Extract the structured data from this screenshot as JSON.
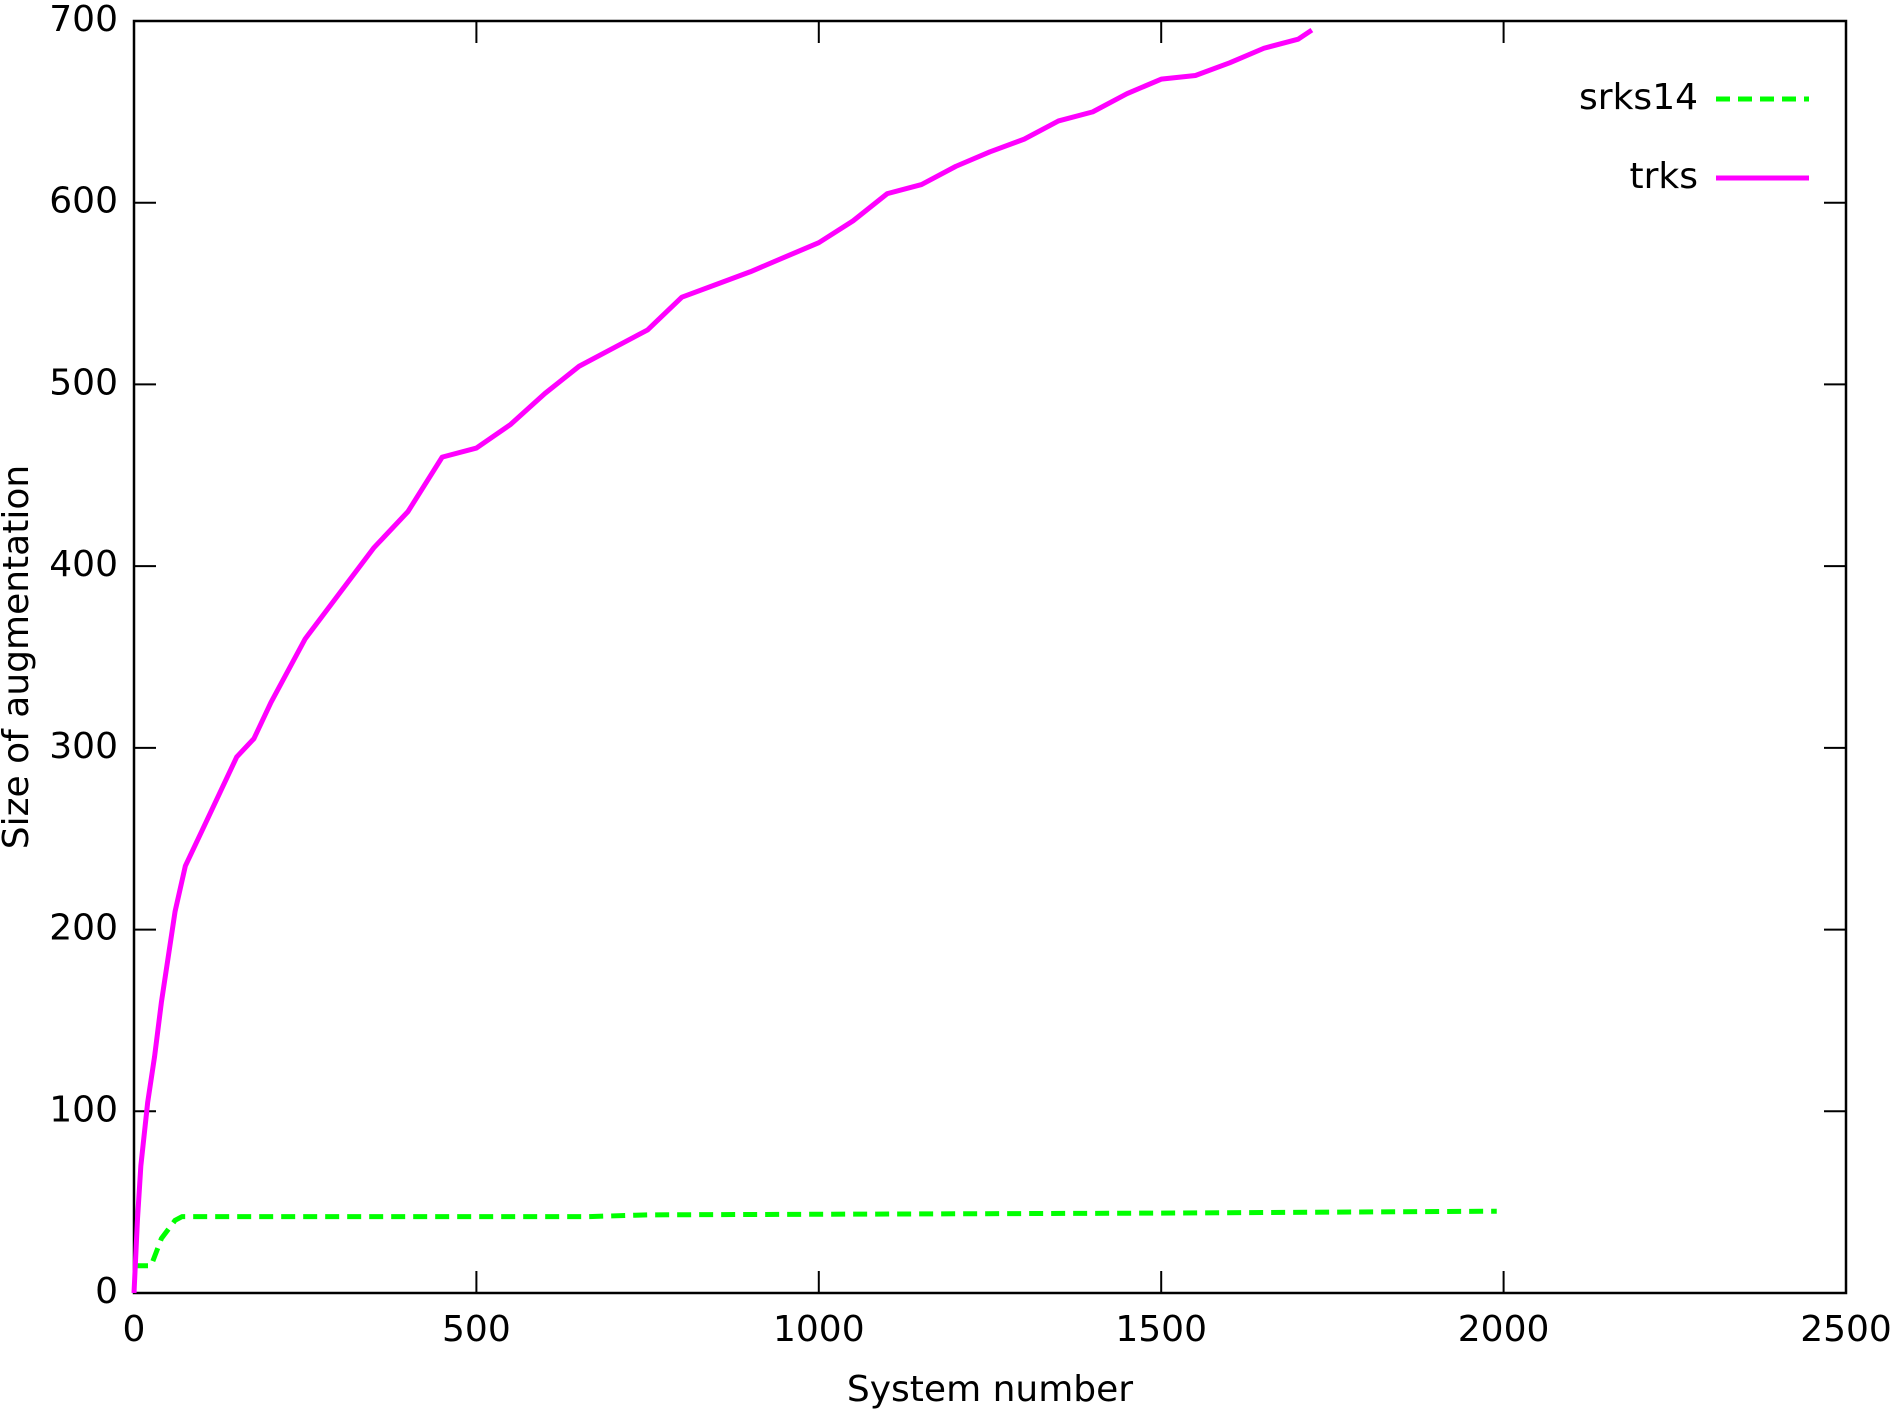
{
  "chart_data": {
    "type": "line",
    "xlabel": "System number",
    "ylabel": "Size of augmentation",
    "xlim": [
      0,
      2500
    ],
    "ylim": [
      0,
      700
    ],
    "xticks": [
      0,
      500,
      1000,
      1500,
      2000,
      2500
    ],
    "yticks": [
      0,
      100,
      200,
      300,
      400,
      500,
      600,
      700
    ],
    "legend": "top-right",
    "grid": false,
    "series": [
      {
        "name": "srks14",
        "color": "#00ff00",
        "dash": true,
        "x": [
          0,
          25,
          40,
          60,
          70,
          660,
          750,
          1520,
          1990
        ],
        "values": [
          15,
          15,
          30,
          40,
          42,
          42,
          43,
          44,
          45
        ]
      },
      {
        "name": "trks",
        "color": "#ff00ff",
        "dash": false,
        "x": [
          0,
          5,
          10,
          20,
          30,
          40,
          50,
          60,
          75,
          100,
          125,
          150,
          175,
          200,
          250,
          300,
          350,
          400,
          450,
          500,
          550,
          600,
          650,
          700,
          750,
          800,
          850,
          900,
          950,
          1000,
          1050,
          1100,
          1150,
          1200,
          1250,
          1300,
          1350,
          1400,
          1450,
          1500,
          1550,
          1600,
          1650,
          1700,
          1720
        ],
        "values": [
          0,
          40,
          70,
          105,
          130,
          160,
          185,
          210,
          235,
          255,
          275,
          295,
          305,
          325,
          360,
          385,
          410,
          430,
          460,
          465,
          478,
          495,
          510,
          520,
          530,
          548,
          555,
          562,
          570,
          578,
          590,
          605,
          610,
          620,
          628,
          635,
          645,
          650,
          660,
          668,
          670,
          677,
          685,
          690,
          695
        ]
      }
    ]
  }
}
